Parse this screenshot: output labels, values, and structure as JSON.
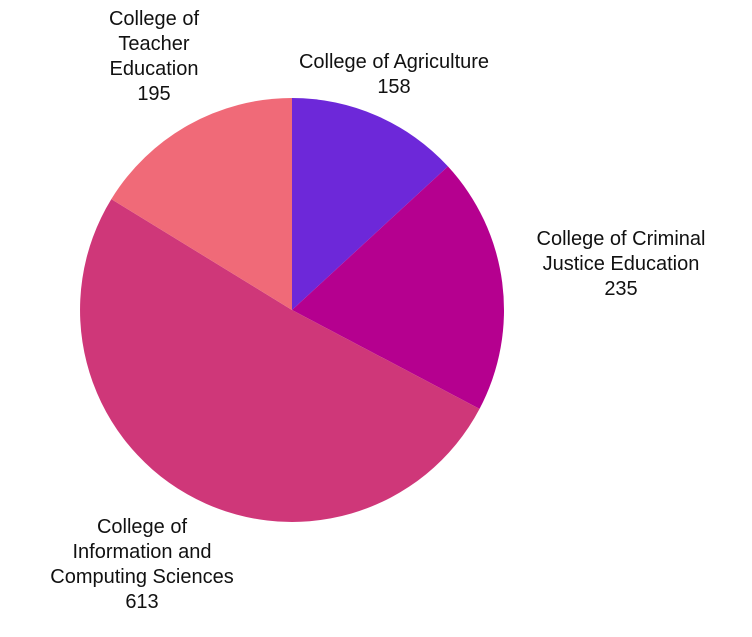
{
  "chart_data": {
    "type": "pie",
    "title": "",
    "slices": [
      {
        "label_lines": [
          "College of Agriculture"
        ],
        "value": 158,
        "value_text": "158",
        "color": "#6d28d9"
      },
      {
        "label_lines": [
          "College of Criminal",
          "Justice Education"
        ],
        "value": 235,
        "value_text": "235",
        "color": "#b5008f"
      },
      {
        "label_lines": [
          "College of",
          "Information and",
          "Computing Sciences"
        ],
        "value": 613,
        "value_text": "613",
        "color": "#cf3779"
      },
      {
        "label_lines": [
          "College of",
          "Teacher",
          "Education"
        ],
        "value": 195,
        "value_text": "195",
        "color": "#f06a78"
      }
    ],
    "start_angle_deg": 0,
    "direction": "clockwise"
  }
}
